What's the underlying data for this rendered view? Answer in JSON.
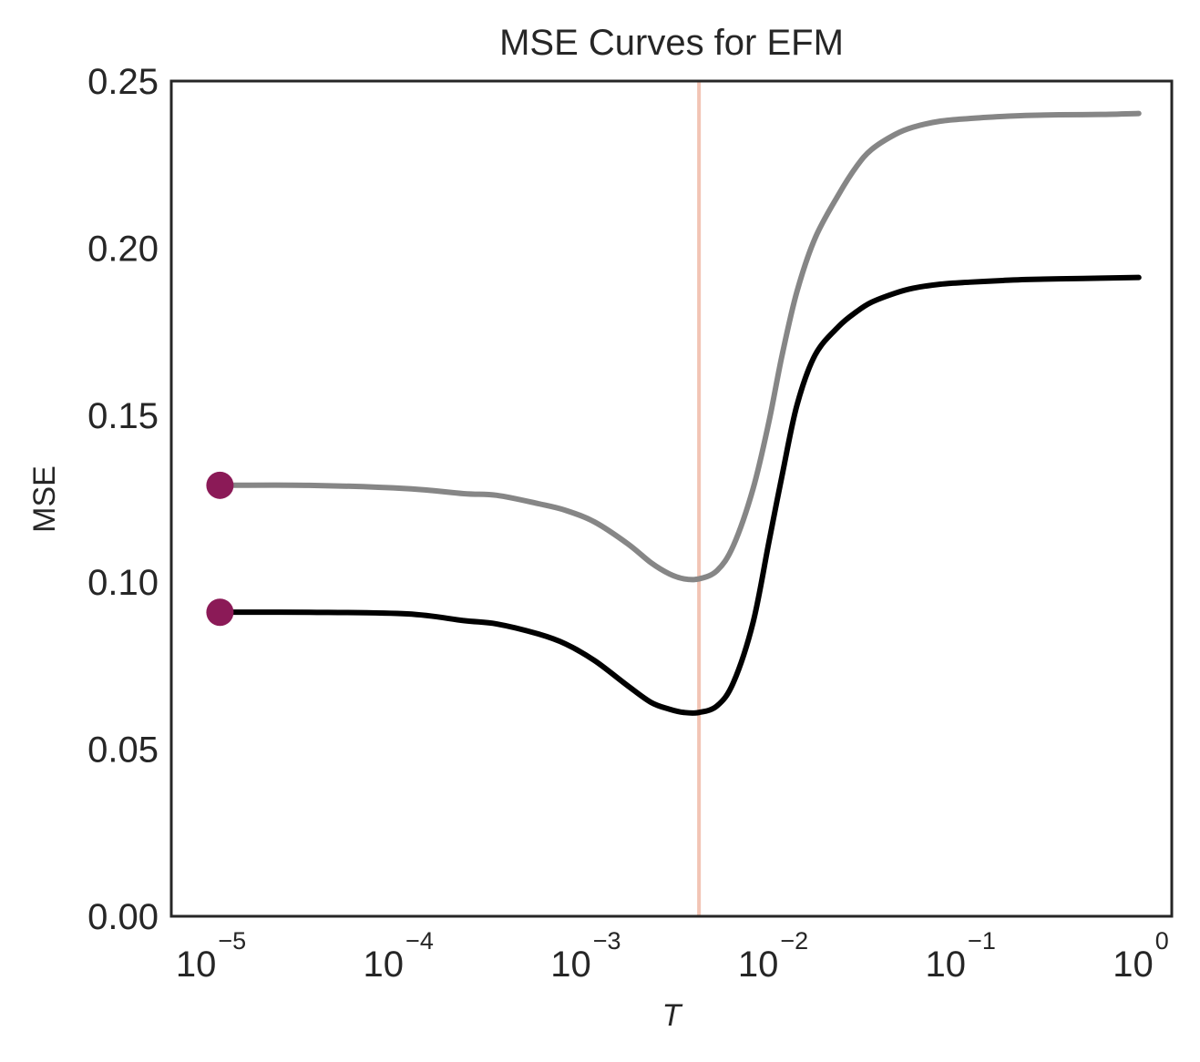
{
  "chart_data": {
    "type": "line",
    "title": "MSE Curves for EFM",
    "xlabel": "T",
    "ylabel": "MSE",
    "xscale": "log",
    "xlim": [
      5.5e-06,
      1.2
    ],
    "ylim": [
      0,
      0.25
    ],
    "grid": false,
    "yticks": [
      {
        "value": 0.0,
        "label": "0.00"
      },
      {
        "value": 0.05,
        "label": "0.05"
      },
      {
        "value": 0.1,
        "label": "0.10"
      },
      {
        "value": 0.15,
        "label": "0.15"
      },
      {
        "value": 0.2,
        "label": "0.20"
      },
      {
        "value": 0.25,
        "label": "0.25"
      }
    ],
    "xticks": [
      {
        "value": 1e-05,
        "base": "10",
        "exp": "−5"
      },
      {
        "value": 0.0001,
        "base": "10",
        "exp": "−4"
      },
      {
        "value": 0.001,
        "base": "10",
        "exp": "−3"
      },
      {
        "value": 0.01,
        "base": "10",
        "exp": "−2"
      },
      {
        "value": 0.1,
        "base": "10",
        "exp": "−1"
      },
      {
        "value": 1,
        "base": "10",
        "exp": "0"
      }
    ],
    "vline": {
      "x": 0.0036,
      "color": "#f2c4b4"
    },
    "series": [
      {
        "color": "#868686",
        "x": [
          1e-05,
          3e-05,
          0.0001,
          0.0002,
          0.0003,
          0.0005,
          0.0007,
          0.001,
          0.0015,
          0.002,
          0.0025,
          0.003,
          0.0036,
          0.0045,
          0.0055,
          0.007,
          0.0085,
          0.01,
          0.012,
          0.015,
          0.02,
          0.025,
          0.03,
          0.04,
          0.05,
          0.07,
          0.1,
          0.15,
          0.2,
          0.3,
          0.5,
          0.8
        ],
        "y": [
          0.129,
          0.129,
          0.128,
          0.1265,
          0.126,
          0.1235,
          0.1215,
          0.118,
          0.1115,
          0.1058,
          0.1025,
          0.101,
          0.101,
          0.1035,
          0.111,
          0.128,
          0.148,
          0.168,
          0.187,
          0.203,
          0.216,
          0.2245,
          0.2295,
          0.234,
          0.2362,
          0.238,
          0.2388,
          0.2394,
          0.2397,
          0.2399,
          0.24,
          0.2403
        ]
      },
      {
        "color": "#000000",
        "x": [
          1e-05,
          3e-05,
          0.0001,
          0.0002,
          0.0003,
          0.0005,
          0.0007,
          0.001,
          0.0015,
          0.002,
          0.0025,
          0.003,
          0.0036,
          0.0045,
          0.0055,
          0.007,
          0.0085,
          0.01,
          0.012,
          0.015,
          0.02,
          0.025,
          0.03,
          0.04,
          0.05,
          0.07,
          0.1,
          0.15,
          0.2,
          0.3,
          0.5,
          0.8
        ],
        "y": [
          0.091,
          0.091,
          0.0905,
          0.0885,
          0.0875,
          0.0845,
          0.0815,
          0.0765,
          0.069,
          0.064,
          0.062,
          0.061,
          0.061,
          0.063,
          0.07,
          0.088,
          0.112,
          0.132,
          0.153,
          0.168,
          0.1765,
          0.181,
          0.1838,
          0.1865,
          0.188,
          0.1892,
          0.1898,
          0.1903,
          0.1906,
          0.1908,
          0.191,
          0.1912
        ]
      }
    ],
    "markers": [
      {
        "x": 1e-05,
        "y": 0.129,
        "color": "#8b1a57"
      },
      {
        "x": 1e-05,
        "y": 0.091,
        "color": "#8b1a57"
      }
    ]
  }
}
